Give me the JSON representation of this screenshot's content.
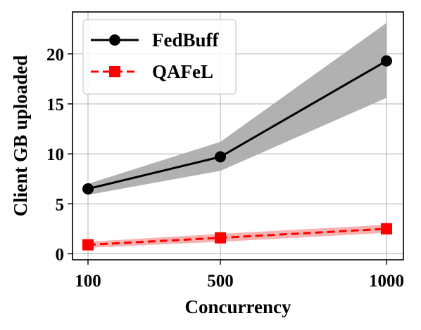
{
  "chart_data": {
    "type": "line",
    "xlabel": "Concurrency",
    "ylabel": "Client GB uploaded",
    "categories": [
      "100",
      "500",
      "1000"
    ],
    "x": [
      100,
      500,
      1000
    ],
    "ylim": [
      -0.6,
      24.2
    ],
    "yticks": [
      "0",
      "5",
      "10",
      "15",
      "20"
    ],
    "grid": true,
    "legend_position": "top-left",
    "series": [
      {
        "name": "FedBuff",
        "color": "#000000",
        "band_color": "#a9a9a9",
        "marker": "circle",
        "linestyle": "solid",
        "values": [
          6.5,
          9.7,
          19.3
        ],
        "lower": [
          5.9,
          8.3,
          15.6
        ],
        "upper": [
          7.0,
          11.2,
          23.1
        ]
      },
      {
        "name": "QAFeL",
        "color": "#ff0000",
        "band_color": "#f7a8a8",
        "marker": "square",
        "linestyle": "dashed",
        "values": [
          0.9,
          1.6,
          2.5
        ],
        "lower": [
          0.6,
          1.2,
          2.1
        ],
        "upper": [
          1.2,
          2.0,
          2.9
        ]
      }
    ]
  }
}
